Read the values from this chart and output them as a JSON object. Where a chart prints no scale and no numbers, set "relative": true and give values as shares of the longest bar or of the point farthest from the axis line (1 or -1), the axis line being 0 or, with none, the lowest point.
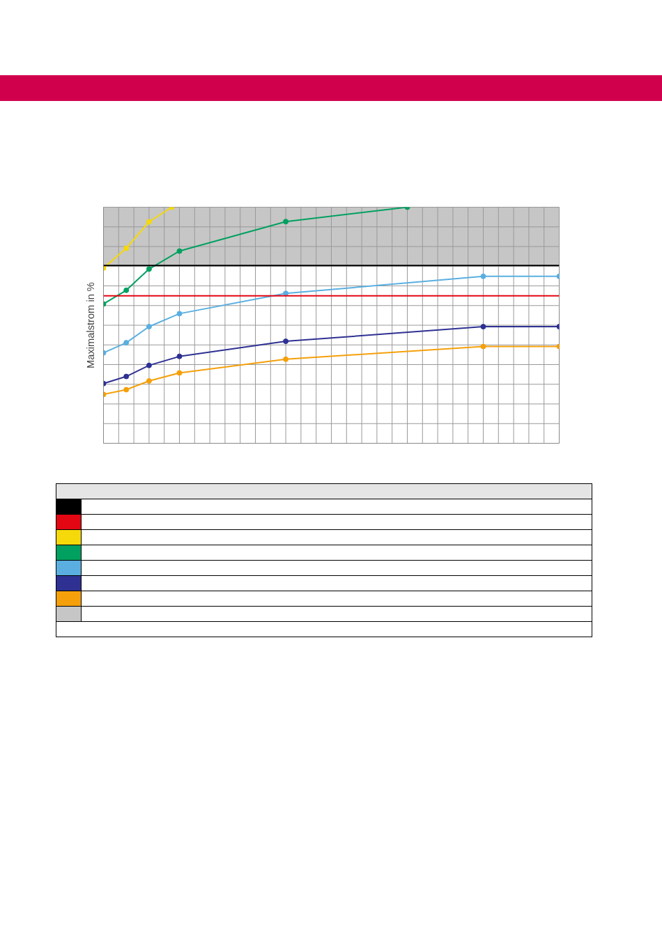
{
  "chart_data": {
    "type": "line",
    "ylabel": "Maximalstrom in %",
    "relative": true,
    "categories": [
      null,
      null,
      null,
      null,
      null,
      null,
      null,
      null,
      null,
      null,
      null,
      null,
      null,
      null,
      null,
      null,
      null,
      null,
      null,
      null,
      null,
      null,
      null,
      null,
      null,
      null,
      null,
      null,
      null,
      null,
      null,
      null,
      null,
      null,
      null,
      null,
      null,
      null,
      null,
      null,
      null,
      null,
      null,
      null,
      null,
      null,
      null,
      null,
      null,
      null,
      null,
      null,
      null,
      null,
      null,
      null,
      null,
      null,
      null,
      null,
      null
    ],
    "series": [
      {
        "color": "#f5d90a",
        "values": [
          0.742,
          null,
          null,
          0.826,
          null,
          null,
          0.938,
          null,
          null,
          1,
          null,
          null,
          null,
          null,
          null,
          null,
          null,
          null,
          null,
          null,
          null,
          null,
          null,
          null,
          null,
          null,
          null,
          null,
          null,
          null,
          null,
          null,
          null,
          null,
          null,
          null,
          null,
          null,
          null,
          null,
          null,
          null,
          null,
          null,
          null,
          null,
          null,
          null,
          null,
          null,
          null,
          null,
          null,
          null,
          null,
          null,
          null,
          null,
          null,
          null,
          null
        ]
      },
      {
        "color": "#00a060",
        "values": [
          0.59,
          null,
          null,
          0.648,
          null,
          null,
          0.738,
          null,
          null,
          null,
          0.814,
          null,
          null,
          null,
          null,
          null,
          null,
          null,
          null,
          null,
          null,
          null,
          null,
          null,
          0.939,
          null,
          null,
          null,
          null,
          null,
          null,
          null,
          null,
          null,
          null,
          null,
          null,
          null,
          null,
          null,
          1,
          null,
          null,
          null,
          null,
          null,
          null,
          null,
          null,
          null,
          null,
          null,
          null,
          null,
          null,
          null,
          null,
          null,
          null,
          null,
          null
        ]
      },
      {
        "color": "#5aafe0",
        "values": [
          0.383,
          null,
          null,
          0.426,
          null,
          null,
          0.494,
          null,
          null,
          null,
          0.549,
          null,
          null,
          null,
          null,
          null,
          null,
          null,
          null,
          null,
          null,
          null,
          null,
          null,
          0.635,
          null,
          null,
          null,
          null,
          null,
          null,
          null,
          null,
          null,
          null,
          null,
          null,
          null,
          null,
          null,
          null,
          null,
          null,
          null,
          null,
          null,
          null,
          null,
          null,
          null,
          0.707,
          null,
          null,
          null,
          null,
          null,
          null,
          null,
          null,
          null,
          0.707
        ]
      },
      {
        "color": "#2e3192",
        "values": [
          0.253,
          null,
          null,
          0.283,
          null,
          null,
          0.33,
          null,
          null,
          null,
          0.368,
          null,
          null,
          null,
          null,
          null,
          null,
          null,
          null,
          null,
          null,
          null,
          null,
          null,
          0.432,
          null,
          null,
          null,
          null,
          null,
          null,
          null,
          null,
          null,
          null,
          null,
          null,
          null,
          null,
          null,
          null,
          null,
          null,
          null,
          null,
          null,
          null,
          null,
          null,
          null,
          0.494,
          null,
          null,
          null,
          null,
          null,
          null,
          null,
          null,
          null,
          0.494
        ]
      },
      {
        "color": "#f5a00a",
        "values": [
          0.207,
          null,
          null,
          0.227,
          null,
          null,
          0.264,
          null,
          null,
          null,
          0.298,
          null,
          null,
          null,
          null,
          null,
          null,
          null,
          null,
          null,
          null,
          null,
          null,
          null,
          0.356,
          null,
          null,
          null,
          null,
          null,
          null,
          null,
          null,
          null,
          null,
          null,
          null,
          null,
          null,
          null,
          null,
          null,
          null,
          null,
          null,
          null,
          null,
          null,
          null,
          null,
          0.41,
          null,
          null,
          null,
          null,
          null,
          null,
          null,
          null,
          null,
          0.41
        ]
      }
    ],
    "ref_lines": [
      {
        "axis": "y",
        "value": 0.753,
        "color": "#000000"
      },
      {
        "axis": "y",
        "value": 0.625,
        "color": "#e30613"
      }
    ],
    "bands": [
      {
        "axis": "y",
        "from": 0.753,
        "to": 1,
        "color": "#c6c6c6"
      }
    ],
    "marker": "circle",
    "grid": true
  }
}
